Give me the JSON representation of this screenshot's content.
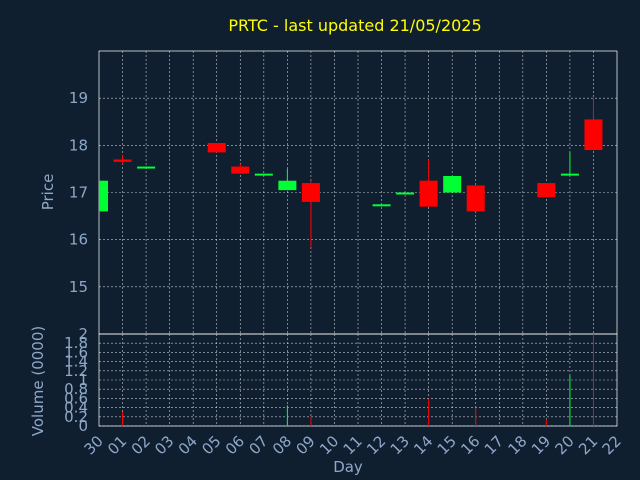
{
  "chart_data": {
    "type": "candlestick",
    "title": "PRTC - last updated 21/05/2025",
    "xlabel": "Day",
    "ylabel": "Price",
    "volume_label": "Volume (0000)",
    "x_ticks": [
      "30",
      "01",
      "02",
      "03",
      "04",
      "05",
      "06",
      "07",
      "08",
      "09",
      "10",
      "11",
      "12",
      "13",
      "14",
      "15",
      "16",
      "17",
      "18",
      "19",
      "20",
      "21",
      "22"
    ],
    "price_ylim": [
      14,
      20
    ],
    "price_ticks": [
      "15",
      "16",
      "17",
      "18",
      "19"
    ],
    "volume_ylim": [
      0,
      2
    ],
    "volume_ticks": [
      "0",
      "0.2",
      "0.4",
      "0.6",
      "0.8",
      "1",
      "1.2",
      "1.4",
      "1.6",
      "1.8",
      "2"
    ],
    "grid": true,
    "candles": [
      {
        "x": 0,
        "open": 16.6,
        "high": 17.25,
        "low": 16.6,
        "close": 17.25,
        "volume": 0
      },
      {
        "x": 1,
        "open": 17.7,
        "high": 17.8,
        "low": 17.6,
        "close": 17.65,
        "volume": 0.3
      },
      {
        "x": 2,
        "open": 17.55,
        "high": 17.55,
        "low": 17.5,
        "close": 17.55,
        "volume": 0
      },
      {
        "x": 5,
        "open": 18.05,
        "high": 18.05,
        "low": 17.85,
        "close": 17.85,
        "volume": 0
      },
      {
        "x": 6,
        "open": 17.55,
        "high": 17.6,
        "low": 17.4,
        "close": 17.4,
        "volume": 0
      },
      {
        "x": 7,
        "open": 17.4,
        "high": 17.4,
        "low": 17.4,
        "close": 17.4,
        "volume": 0
      },
      {
        "x": 8,
        "open": 17.05,
        "high": 17.5,
        "low": 17.05,
        "close": 17.25,
        "volume": 0.45
      },
      {
        "x": 9,
        "open": 17.2,
        "high": 17.25,
        "low": 15.85,
        "close": 16.8,
        "volume": 0.2
      },
      {
        "x": 12,
        "open": 16.75,
        "high": 16.75,
        "low": 16.75,
        "close": 16.75,
        "volume": 0
      },
      {
        "x": 13,
        "open": 17.0,
        "high": 17.0,
        "low": 17.0,
        "close": 17.0,
        "volume": 0
      },
      {
        "x": 14,
        "open": 17.25,
        "high": 17.7,
        "low": 16.7,
        "close": 16.7,
        "volume": 0.6
      },
      {
        "x": 15,
        "open": 17.0,
        "high": 17.35,
        "low": 17.0,
        "close": 17.35,
        "volume": 0
      },
      {
        "x": 16,
        "open": 17.15,
        "high": 17.15,
        "low": 16.6,
        "close": 16.6,
        "volume": 0.4
      },
      {
        "x": 19,
        "open": 17.2,
        "high": 17.2,
        "low": 16.9,
        "close": 16.9,
        "volume": 0.15
      },
      {
        "x": 20,
        "open": 17.4,
        "high": 17.85,
        "low": 17.4,
        "close": 17.4,
        "volume": 1.1
      },
      {
        "x": 21,
        "open": 18.55,
        "high": 19.0,
        "low": 17.9,
        "close": 17.9,
        "volume": 2.0
      }
    ],
    "colors": {
      "up": "#00ff33",
      "down": "#ff0000",
      "background": "#0f1f30",
      "grid": "#ffffff"
    }
  }
}
